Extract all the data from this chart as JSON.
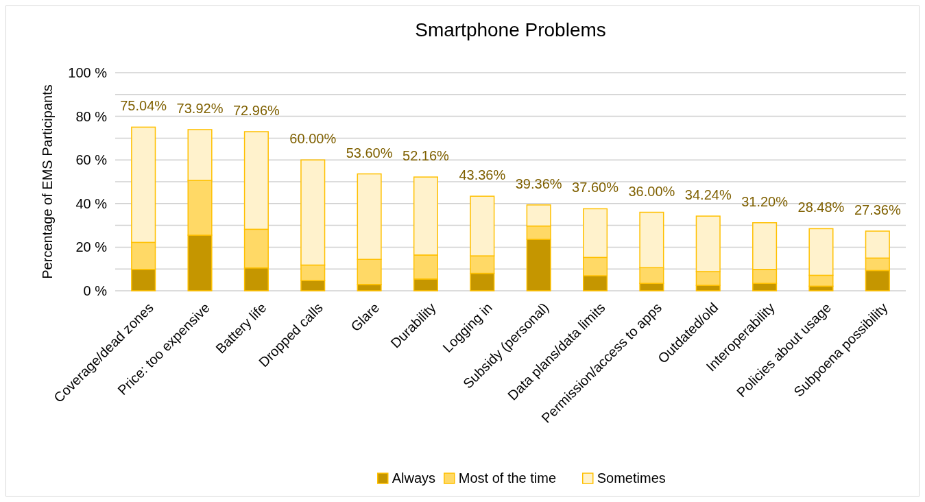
{
  "chart_data": {
    "type": "bar",
    "stacked": true,
    "title": "Smartphone Problems",
    "ylabel": "Percentage of EMS Participants",
    "categories": [
      "Coverage/dead zones",
      "Price: too expensive",
      "Battery life",
      "Dropped calls",
      "Glare",
      "Durability",
      "Logging in",
      "Subsidy (personal)",
      "Data plans/data limits",
      "Permission/access to apps",
      "Outdated/old",
      "Interoperability",
      "Policies about usage",
      "Subpoena possibility"
    ],
    "series": [
      {
        "name": "Always",
        "color": "#c59600",
        "values": [
          9.8,
          25.5,
          10.5,
          4.7,
          2.9,
          5.4,
          8.0,
          23.6,
          6.9,
          3.4,
          2.5,
          3.4,
          2.1,
          9.3
        ]
      },
      {
        "name": "Most of the time",
        "color": "#ffd966",
        "values": [
          12.4,
          25.1,
          17.7,
          7.1,
          11.5,
          11.0,
          8.0,
          6.1,
          8.4,
          7.2,
          6.3,
          6.4,
          5.0,
          5.7
        ]
      },
      {
        "name": "Sometimes",
        "color": "#fff2cc",
        "values": [
          52.84,
          23.32,
          44.76,
          48.2,
          39.2,
          35.76,
          27.36,
          9.66,
          22.3,
          25.4,
          25.44,
          21.4,
          21.38,
          12.36
        ]
      }
    ],
    "totals": [
      "75.04%",
      "73.92%",
      "72.96%",
      "60.00%",
      "53.60%",
      "52.16%",
      "43.36%",
      "39.36%",
      "37.60%",
      "36.00%",
      "34.24%",
      "31.20%",
      "28.48%",
      "27.36%"
    ],
    "ylim": [
      0,
      100
    ],
    "yticks": [
      {
        "value": 0,
        "label": "0 %"
      },
      {
        "value": 10,
        "label": null
      },
      {
        "value": 20,
        "label": "20 %"
      },
      {
        "value": 30,
        "label": null
      },
      {
        "value": 40,
        "label": "40 %"
      },
      {
        "value": 50,
        "label": null
      },
      {
        "value": 60,
        "label": "60 %"
      },
      {
        "value": 70,
        "label": null
      },
      {
        "value": 80,
        "label": "80 %"
      },
      {
        "value": 90,
        "label": null
      },
      {
        "value": 100,
        "label": "100 %"
      }
    ],
    "grid": "y",
    "legend": "bottom"
  }
}
